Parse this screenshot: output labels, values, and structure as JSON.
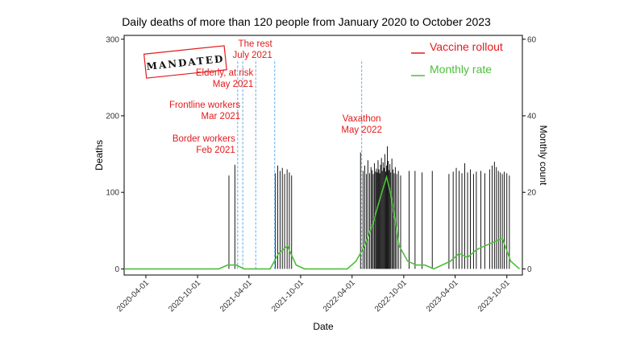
{
  "chart_data": {
    "type": "bar+line",
    "title": "Daily deaths of more than 120 people from January 2020 to October 2023",
    "xlabel": "Date",
    "ylabel": "Deaths",
    "y2label": "Monthly count",
    "xlim": [
      "2020-01-15",
      "2023-11-25"
    ],
    "ylim": [
      -8,
      305
    ],
    "y2lim": [
      -1.6,
      61
    ],
    "x_ticks": [
      "2020-04-01",
      "2020-10-01",
      "2021-04-01",
      "2021-10-01",
      "2022-04-01",
      "2022-10-01",
      "2023-04-01",
      "2023-10-01"
    ],
    "y_ticks": [
      0,
      100,
      200,
      300
    ],
    "y2_ticks": [
      0,
      20,
      40,
      60
    ],
    "grid": false,
    "legend_position": "top-right",
    "legend": [
      {
        "name": "Vaccine rollout",
        "color": "#e31a1c"
      },
      {
        "name": "Monthly rate",
        "color": "#4dbf3a"
      }
    ],
    "stamp_text": "MANDATED",
    "bar_color": "#000000",
    "line_color": "#4dbf3a",
    "annotation_color": "#e31a1c",
    "vline_color": "#5aa9e6",
    "annotations": [
      {
        "line1": "Border workers",
        "line2": "Feb 2021",
        "date": "2021-02-20"
      },
      {
        "line1": "Frontline workers",
        "line2": "Mar 2021",
        "date": "2021-03-10"
      },
      {
        "line1": "Elderly, at risk",
        "line2": "May 2021",
        "date": "2021-04-25"
      },
      {
        "line1": "The rest",
        "line2": "July 2021",
        "date": "2021-07-01"
      },
      {
        "line1": "Vaxathon",
        "line2": "May 2022",
        "date": "2022-05-05"
      }
    ],
    "daily_deaths": [
      {
        "date": "2021-01-20",
        "value": 122
      },
      {
        "date": "2021-02-10",
        "value": 136
      },
      {
        "date": "2021-07-03",
        "value": 125
      },
      {
        "date": "2021-07-12",
        "value": 135
      },
      {
        "date": "2021-07-20",
        "value": 128
      },
      {
        "date": "2021-07-28",
        "value": 132
      },
      {
        "date": "2021-08-05",
        "value": 124
      },
      {
        "date": "2021-08-14",
        "value": 130
      },
      {
        "date": "2021-08-22",
        "value": 126
      },
      {
        "date": "2021-08-30",
        "value": 122
      },
      {
        "date": "2022-05-01",
        "value": 152
      },
      {
        "date": "2022-05-10",
        "value": 128
      },
      {
        "date": "2022-05-16",
        "value": 135
      },
      {
        "date": "2022-05-22",
        "value": 124
      },
      {
        "date": "2022-05-27",
        "value": 142
      },
      {
        "date": "2022-06-02",
        "value": 125
      },
      {
        "date": "2022-06-07",
        "value": 133
      },
      {
        "date": "2022-06-11",
        "value": 129
      },
      {
        "date": "2022-06-15",
        "value": 124
      },
      {
        "date": "2022-06-19",
        "value": 138
      },
      {
        "date": "2022-06-23",
        "value": 127
      },
      {
        "date": "2022-06-26",
        "value": 131
      },
      {
        "date": "2022-06-29",
        "value": 126
      },
      {
        "date": "2022-07-02",
        "value": 142
      },
      {
        "date": "2022-07-05",
        "value": 130
      },
      {
        "date": "2022-07-08",
        "value": 125
      },
      {
        "date": "2022-07-11",
        "value": 136
      },
      {
        "date": "2022-07-14",
        "value": 145
      },
      {
        "date": "2022-07-17",
        "value": 128
      },
      {
        "date": "2022-07-20",
        "value": 139
      },
      {
        "date": "2022-07-23",
        "value": 132
      },
      {
        "date": "2022-07-26",
        "value": 150
      },
      {
        "date": "2022-07-29",
        "value": 127
      },
      {
        "date": "2022-08-01",
        "value": 135
      },
      {
        "date": "2022-08-04",
        "value": 160
      },
      {
        "date": "2022-08-07",
        "value": 141
      },
      {
        "date": "2022-08-10",
        "value": 129
      },
      {
        "date": "2022-08-13",
        "value": 137
      },
      {
        "date": "2022-08-16",
        "value": 126
      },
      {
        "date": "2022-08-20",
        "value": 144
      },
      {
        "date": "2022-08-24",
        "value": 130
      },
      {
        "date": "2022-08-28",
        "value": 125
      },
      {
        "date": "2022-09-01",
        "value": 133
      },
      {
        "date": "2022-09-06",
        "value": 124
      },
      {
        "date": "2022-09-12",
        "value": 128
      },
      {
        "date": "2022-09-20",
        "value": 122
      },
      {
        "date": "2022-10-20",
        "value": 128
      },
      {
        "date": "2022-11-10",
        "value": 128
      },
      {
        "date": "2022-12-05",
        "value": 126
      },
      {
        "date": "2023-01-10",
        "value": 128
      },
      {
        "date": "2023-03-10",
        "value": 124
      },
      {
        "date": "2023-03-25",
        "value": 127
      },
      {
        "date": "2023-04-05",
        "value": 132
      },
      {
        "date": "2023-04-15",
        "value": 128
      },
      {
        "date": "2023-04-25",
        "value": 125
      },
      {
        "date": "2023-05-05",
        "value": 138
      },
      {
        "date": "2023-05-15",
        "value": 126
      },
      {
        "date": "2023-05-25",
        "value": 130
      },
      {
        "date": "2023-06-05",
        "value": 124
      },
      {
        "date": "2023-06-15",
        "value": 127
      },
      {
        "date": "2023-07-01",
        "value": 128
      },
      {
        "date": "2023-07-15",
        "value": 125
      },
      {
        "date": "2023-08-01",
        "value": 130
      },
      {
        "date": "2023-08-10",
        "value": 135
      },
      {
        "date": "2023-08-18",
        "value": 140
      },
      {
        "date": "2023-08-25",
        "value": 133
      },
      {
        "date": "2023-09-01",
        "value": 128
      },
      {
        "date": "2023-09-08",
        "value": 126
      },
      {
        "date": "2023-09-15",
        "value": 124
      },
      {
        "date": "2023-09-22",
        "value": 127
      },
      {
        "date": "2023-10-01",
        "value": 125
      },
      {
        "date": "2023-10-10",
        "value": 122
      }
    ],
    "monthly_rate": [
      {
        "date": "2020-01-15",
        "value": 0
      },
      {
        "date": "2020-12-15",
        "value": 0
      },
      {
        "date": "2021-01-15",
        "value": 1
      },
      {
        "date": "2021-02-15",
        "value": 1
      },
      {
        "date": "2021-03-15",
        "value": 0
      },
      {
        "date": "2021-06-15",
        "value": 0
      },
      {
        "date": "2021-07-15",
        "value": 4
      },
      {
        "date": "2021-08-15",
        "value": 6
      },
      {
        "date": "2021-09-15",
        "value": 1
      },
      {
        "date": "2021-10-15",
        "value": 0
      },
      {
        "date": "2022-03-15",
        "value": 0
      },
      {
        "date": "2022-04-15",
        "value": 2
      },
      {
        "date": "2022-05-15",
        "value": 6
      },
      {
        "date": "2022-06-15",
        "value": 12
      },
      {
        "date": "2022-07-15",
        "value": 20
      },
      {
        "date": "2022-08-01",
        "value": 24
      },
      {
        "date": "2022-08-15",
        "value": 20
      },
      {
        "date": "2022-09-15",
        "value": 6
      },
      {
        "date": "2022-10-15",
        "value": 2
      },
      {
        "date": "2022-11-15",
        "value": 1
      },
      {
        "date": "2022-12-15",
        "value": 1
      },
      {
        "date": "2023-01-15",
        "value": 0
      },
      {
        "date": "2023-03-15",
        "value": 2
      },
      {
        "date": "2023-04-15",
        "value": 4
      },
      {
        "date": "2023-05-15",
        "value": 3
      },
      {
        "date": "2023-06-15",
        "value": 5
      },
      {
        "date": "2023-07-15",
        "value": 6
      },
      {
        "date": "2023-08-15",
        "value": 7
      },
      {
        "date": "2023-09-15",
        "value": 8
      },
      {
        "date": "2023-10-15",
        "value": 2
      },
      {
        "date": "2023-11-15",
        "value": 0
      }
    ]
  }
}
